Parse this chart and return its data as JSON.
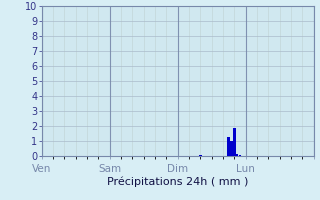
{
  "title": "",
  "xlabel": "Précipitations 24h ( mm )",
  "ylabel": "",
  "background_color": "#d8eef5",
  "plot_bg_color": "#d0e8f0",
  "bar_color": "#0000cc",
  "ylim": [
    0,
    10
  ],
  "yticks": [
    0,
    1,
    2,
    3,
    4,
    5,
    6,
    7,
    8,
    9,
    10
  ],
  "day_labels": [
    "Ven",
    "Sam",
    "Dim",
    "Lun"
  ],
  "n_hours": 96,
  "bars": [
    {
      "hour": 56,
      "value": 0.08
    },
    {
      "hour": 66,
      "value": 1.3
    },
    {
      "hour": 67,
      "value": 1.0
    },
    {
      "hour": 68,
      "value": 1.9
    },
    {
      "hour": 69,
      "value": 0.15
    },
    {
      "hour": 70,
      "value": 0.1
    }
  ],
  "grid_color_major_y": "#aabbcc",
  "grid_color_minor": "#bbcccc",
  "separator_color": "#7788aa",
  "tick_label_color": "#333388",
  "xlabel_color": "#111144",
  "xlabel_fontsize": 8,
  "ytick_fontsize": 7,
  "xtick_fontsize": 7.5
}
